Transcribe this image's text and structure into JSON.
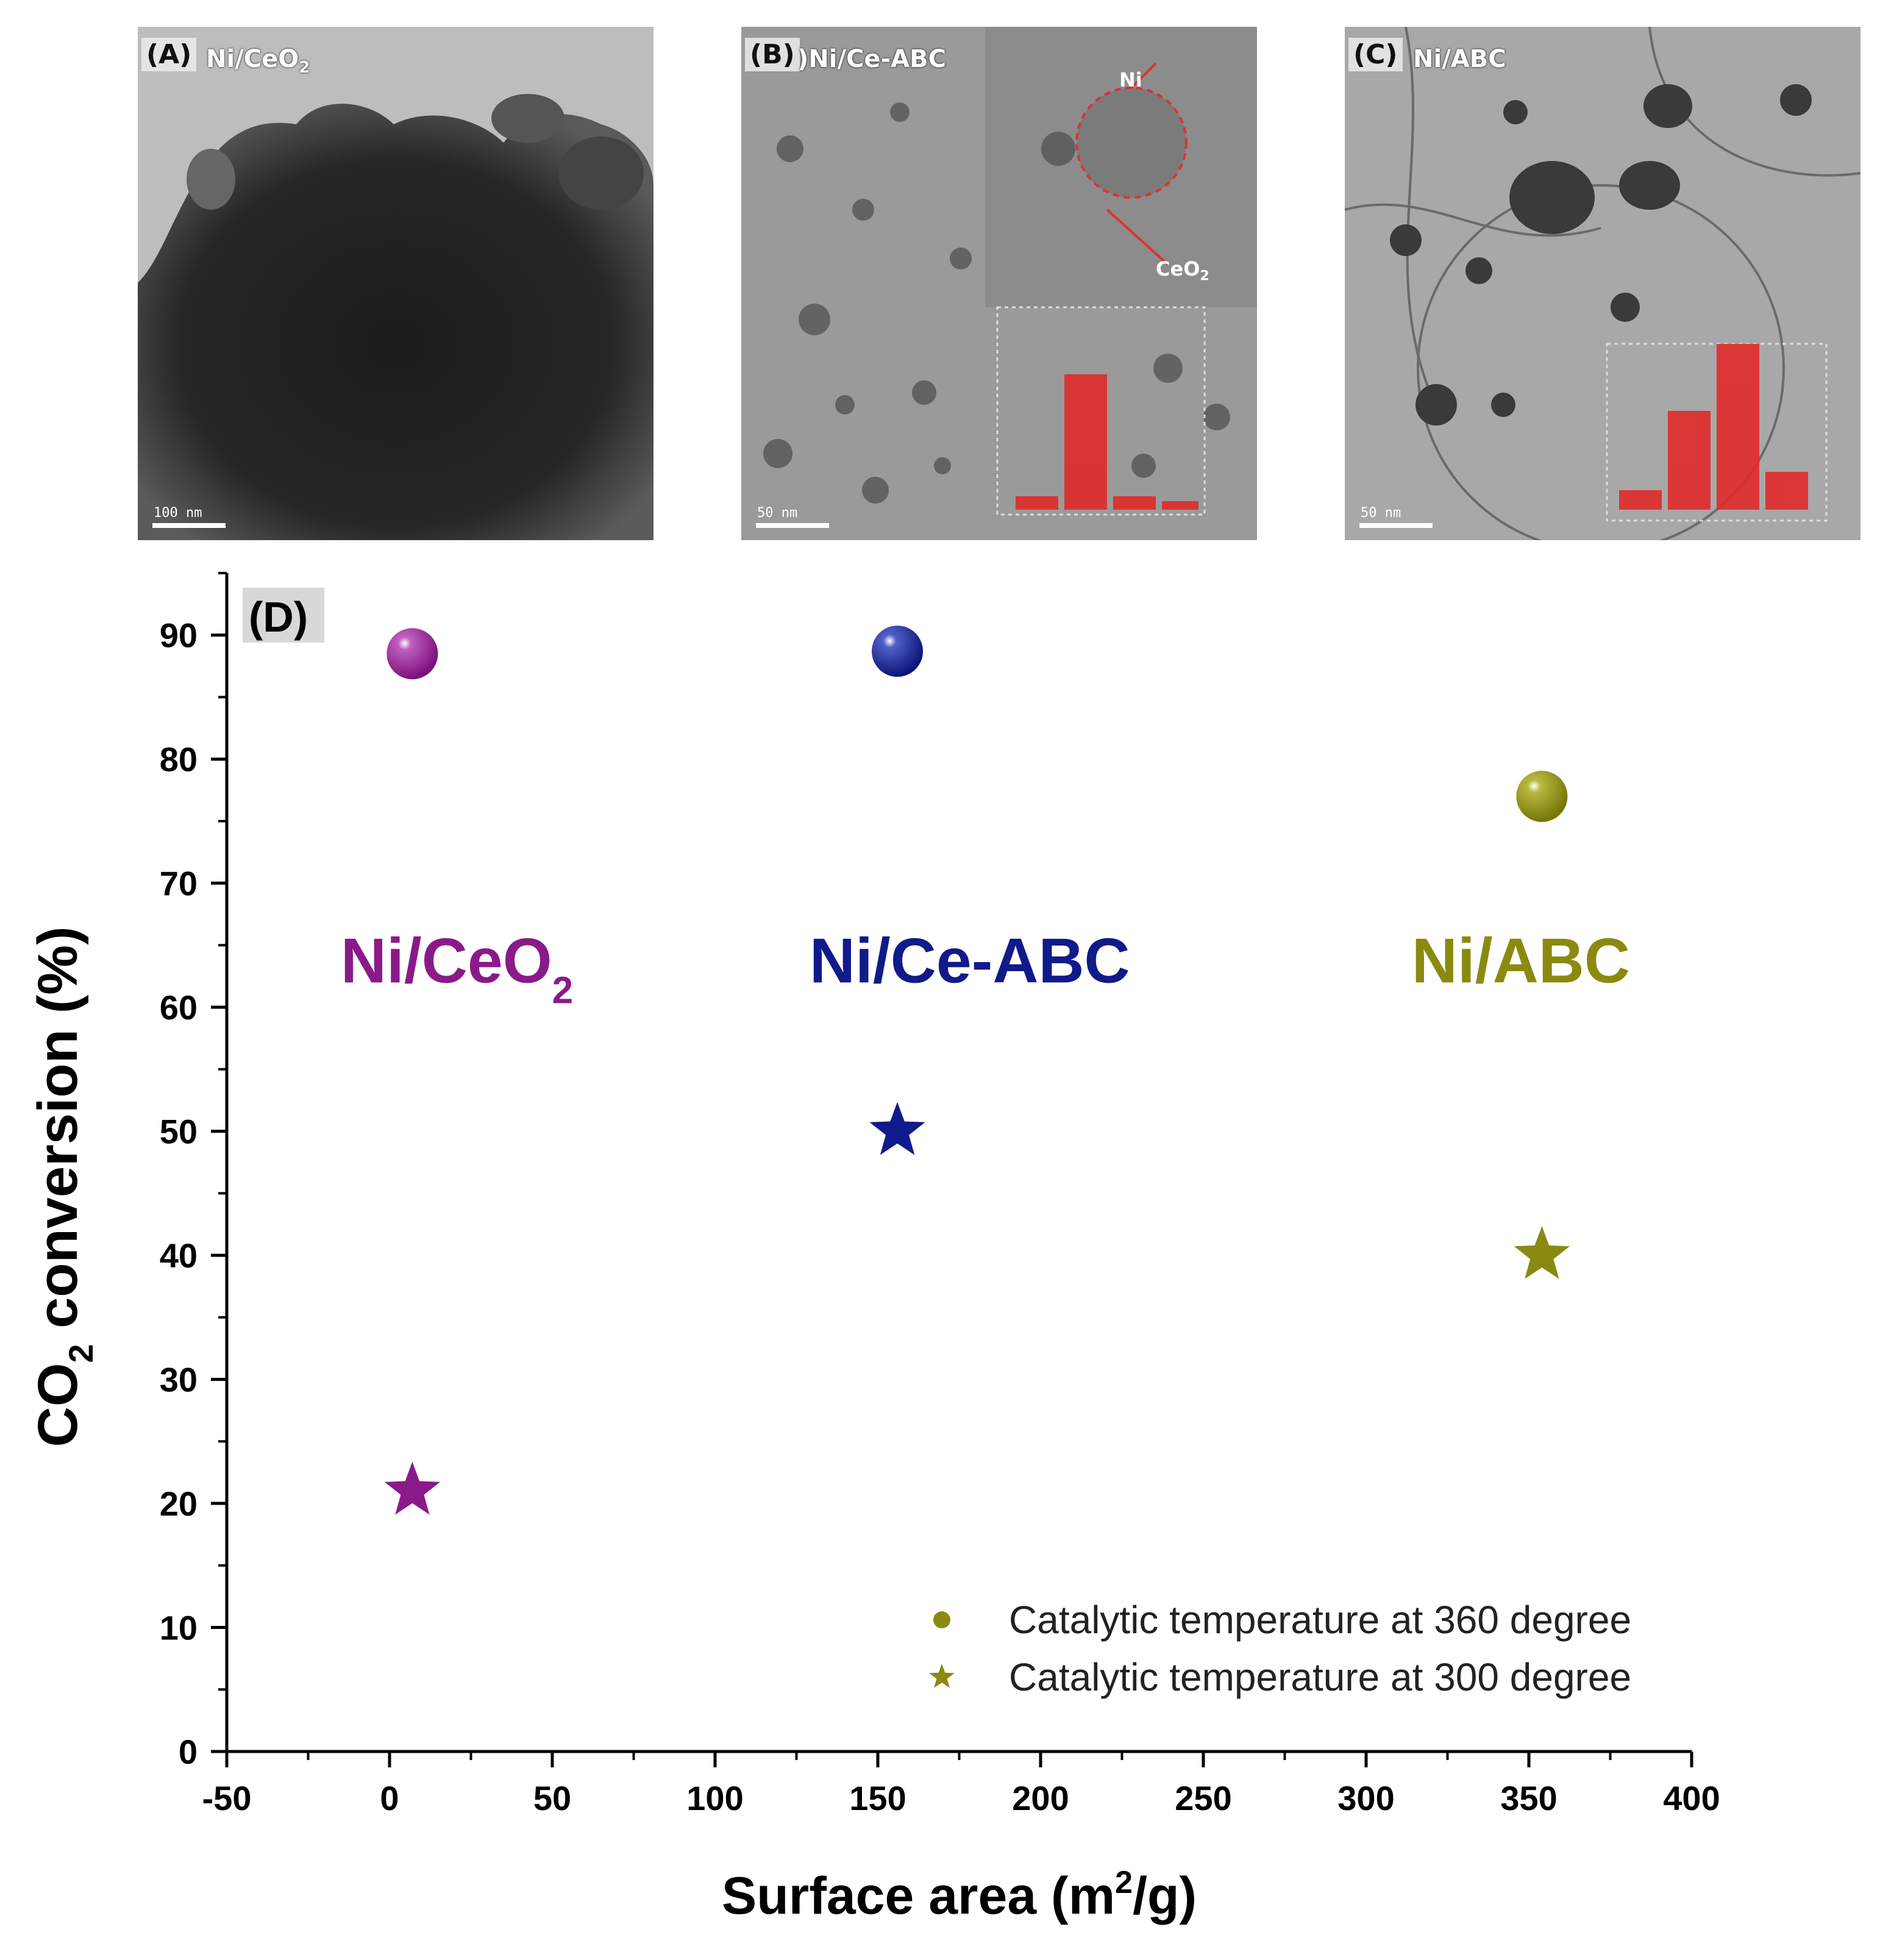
{
  "panels": [
    {
      "label": "(A)",
      "name": "Ni/CeO",
      "name_sub": "2",
      "scale": "100 nm"
    },
    {
      "label": "(B)",
      "name": ")Ni/Ce-ABC",
      "scale": "50 nm",
      "inset_ni": "Ni",
      "inset_ceo": "CeO",
      "inset_ceo_sub": "2"
    },
    {
      "label": "(C)",
      "name": "Ni/ABC",
      "scale": "50 nm"
    }
  ],
  "chart_data": {
    "type": "scatter",
    "panel_label": "(D)",
    "xlabel": "Surface area (m",
    "xlabel_sup": "2",
    "xlabel_tail": "/g)",
    "ylabel": "CO",
    "ylabel_sub": "2",
    "ylabel_tail": " conversion (%)",
    "xlim": [
      -50,
      400
    ],
    "ylim": [
      0,
      95
    ],
    "xticks": [
      -50,
      0,
      50,
      100,
      150,
      200,
      250,
      300,
      350,
      400
    ],
    "yticks": [
      0,
      10,
      20,
      30,
      40,
      50,
      60,
      70,
      80,
      90
    ],
    "grid": false,
    "legend_position": "bottom-right",
    "series": [
      {
        "name": "Catalytic temperature at 360 degree",
        "marker": "sphere",
        "points": [
          {
            "x": 7,
            "y": 88.5
          },
          {
            "x": 156,
            "y": 88.7
          },
          {
            "x": 354,
            "y": 77
          }
        ]
      },
      {
        "name": "Catalytic temperature at 300 degree",
        "marker": "star",
        "points": [
          {
            "x": 7,
            "y": 21
          },
          {
            "x": 156,
            "y": 50
          },
          {
            "x": 354,
            "y": 40
          }
        ]
      }
    ],
    "point_colors": [
      "#8a1a8a",
      "#101a8a",
      "#8a8a10"
    ],
    "legend_color": "#8a8a10",
    "annotations": [
      {
        "text": "Ni/CeO",
        "sub": "2",
        "color": "#8a1a8a",
        "x": -15,
        "y": 62
      },
      {
        "text": "Ni/Ce-ABC",
        "sub": "",
        "color": "#101a8a",
        "x": 129,
        "y": 62
      },
      {
        "text": "Ni/ABC",
        "sub": "",
        "color": "#8a8a10",
        "x": 314,
        "y": 62
      }
    ]
  }
}
